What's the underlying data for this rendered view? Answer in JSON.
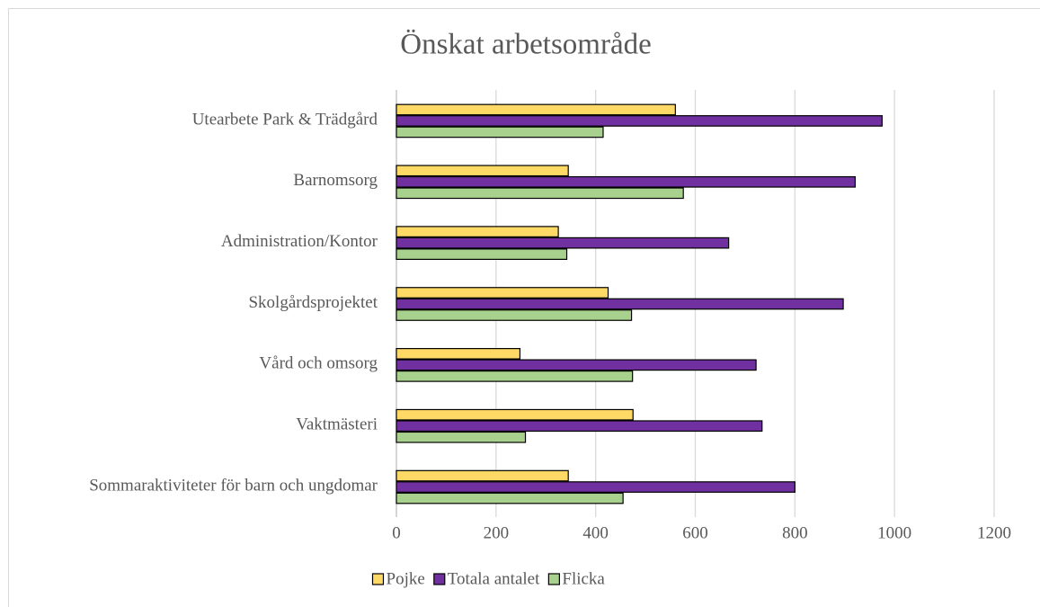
{
  "chart_data": {
    "type": "bar",
    "orientation": "horizontal",
    "title": "Önskat arbetsområde",
    "categories": [
      "Utearbete Park & Trädgård",
      "Barnomsorg",
      "Administration/Kontor",
      "Skolgårdsprojektet",
      "Vård och omsorg",
      "Vaktmästeri",
      "Sommaraktiviteter för barn och ungdomar"
    ],
    "series": [
      {
        "name": "Pojke",
        "color": "#ffd966",
        "values": [
          560,
          345,
          325,
          425,
          248,
          475,
          345
        ]
      },
      {
        "name": "Totala antalet",
        "color": "#7030a0",
        "values": [
          975,
          921,
          667,
          897,
          722,
          734,
          800
        ]
      },
      {
        "name": "Flicka",
        "color": "#a9d18e",
        "values": [
          415,
          576,
          342,
          472,
          474,
          259,
          455
        ]
      }
    ],
    "xlim": [
      0,
      1200
    ],
    "xticks": [
      0,
      200,
      400,
      600,
      800,
      1000,
      1200
    ],
    "grid": true,
    "legend": "bottom"
  }
}
